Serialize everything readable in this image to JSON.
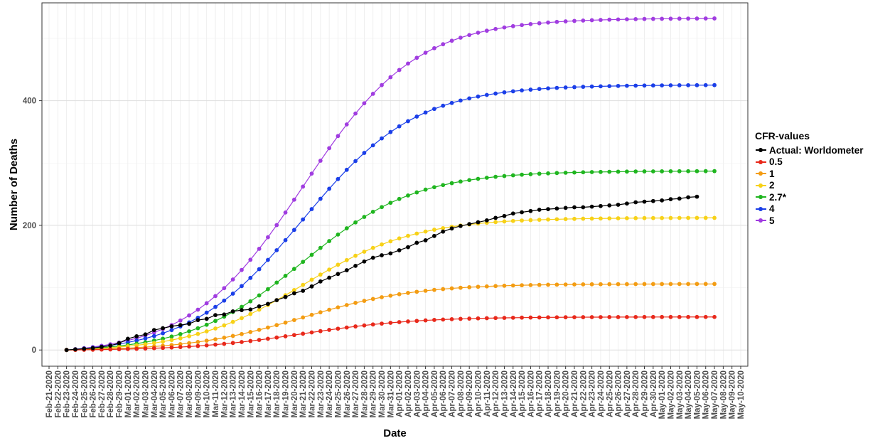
{
  "chart_data": {
    "type": "line",
    "xlabel": "Date",
    "ylabel": "Number of Deaths",
    "x_ticks": [
      "Feb-21-2020",
      "Feb-22-2020",
      "Feb-23-2020",
      "Feb-24-2020",
      "Feb-25-2020",
      "Feb-26-2020",
      "Feb-27-2020",
      "Feb-28-2020",
      "Feb-29-2020",
      "Mar-01-2020",
      "Mar-02-2020",
      "Mar-03-2020",
      "Mar-04-2020",
      "Mar-05-2020",
      "Mar-06-2020",
      "Mar-07-2020",
      "Mar-08-2020",
      "Mar-09-2020",
      "Mar-10-2020",
      "Mar-11-2020",
      "Mar-12-2020",
      "Mar-13-2020",
      "Mar-14-2020",
      "Mar-15-2020",
      "Mar-16-2020",
      "Mar-17-2020",
      "Mar-18-2020",
      "Mar-19-2020",
      "Mar-20-2020",
      "Mar-21-2020",
      "Mar-22-2020",
      "Mar-23-2020",
      "Mar-24-2020",
      "Mar-25-2020",
      "Mar-26-2020",
      "Mar-27-2020",
      "Mar-28-2020",
      "Mar-29-2020",
      "Mar-30-2020",
      "Mar-31-2020",
      "Apr-01-2020",
      "Apr-02-2020",
      "Apr-03-2020",
      "Apr-04-2020",
      "Apr-05-2020",
      "Apr-06-2020",
      "Apr-07-2020",
      "Apr-08-2020",
      "Apr-09-2020",
      "Apr-10-2020",
      "Apr-11-2020",
      "Apr-12-2020",
      "Apr-13-2020",
      "Apr-14-2020",
      "Apr-15-2020",
      "Apr-16-2020",
      "Apr-17-2020",
      "Apr-18-2020",
      "Apr-19-2020",
      "Apr-20-2020",
      "Apr-21-2020",
      "Apr-22-2020",
      "Apr-23-2020",
      "Apr-24-2020",
      "Apr-25-2020",
      "Apr-26-2020",
      "Apr-27-2020",
      "Apr-28-2020",
      "Apr-29-2020",
      "Apr-30-2020",
      "May-01-2020",
      "May-02-2020",
      "May-03-2020",
      "May-04-2020",
      "May-05-2020",
      "May-06-2020",
      "May-07-2020",
      "May-08-2020",
      "May-09-2020",
      "May-10-2020"
    ],
    "x_tick_step": 1,
    "point_dates": [
      "Feb-23-2020",
      "May-07-2020"
    ],
    "y_ticks": [
      0,
      200,
      400
    ],
    "ylim": [
      -26,
      557
    ],
    "grid": true,
    "legend_title": "CFR-values",
    "legend_position": "right",
    "series": [
      {
        "name": "Actual: Worldometer",
        "color": "#000000",
        "values": [
          0,
          1,
          2,
          3,
          5,
          7,
          11,
          18,
          22,
          25,
          32,
          35,
          38,
          40,
          42,
          48,
          50,
          56,
          57,
          62,
          64,
          65,
          70,
          74,
          80,
          85,
          91,
          95,
          102,
          110,
          116,
          122,
          128,
          135,
          142,
          148,
          152,
          155,
          160,
          165,
          172,
          176,
          183,
          190,
          195,
          199,
          202,
          205,
          208,
          212,
          215,
          219,
          221,
          223,
          225,
          226,
          227,
          228,
          229,
          229,
          230,
          231,
          232,
          233,
          235,
          237,
          238,
          239,
          240,
          242,
          243,
          245,
          246
        ],
        "irregular_values": [
          0,
          1,
          2,
          3,
          5,
          7,
          11,
          18,
          22,
          25,
          32,
          35,
          38,
          40,
          42,
          48,
          50,
          56,
          57,
          62,
          64,
          65,
          70,
          74,
          80,
          85,
          91,
          95,
          102,
          110,
          116,
          122,
          128,
          135,
          142,
          148,
          152,
          155,
          160,
          165,
          172,
          176,
          183,
          190,
          195,
          199,
          202,
          205,
          208,
          212,
          215,
          219,
          221,
          223,
          225,
          226,
          227,
          228,
          229,
          229,
          230,
          231,
          232,
          233,
          235,
          237,
          238,
          239,
          240,
          242,
          243,
          245,
          246
        ]
      },
      {
        "name": "0.5",
        "color": "#e8281a",
        "final": 53,
        "midpoint_day": 27,
        "rate": 0.155
      },
      {
        "name": "1",
        "color": "#f39c12",
        "final": 106,
        "midpoint_day": 27,
        "rate": 0.155
      },
      {
        "name": "2",
        "color": "#f7d117",
        "final": 212,
        "midpoint_day": 27,
        "rate": 0.155
      },
      {
        "name": "2.7*",
        "color": "#1fb51f",
        "final": 287,
        "midpoint_day": 27,
        "rate": 0.155
      },
      {
        "name": "4",
        "color": "#1a3ee8",
        "final": 425,
        "midpoint_day": 27,
        "rate": 0.155
      },
      {
        "name": "5",
        "color": "#a03ce0",
        "final": 532,
        "midpoint_day": 27,
        "rate": 0.155
      }
    ]
  }
}
